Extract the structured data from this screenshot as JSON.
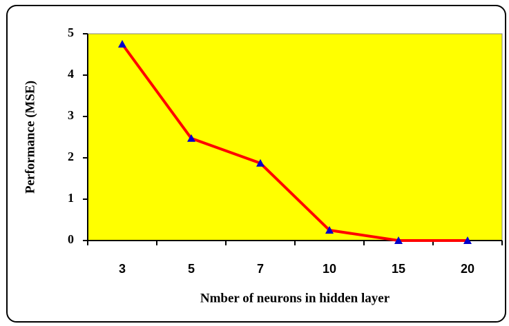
{
  "chart_data": {
    "type": "line",
    "xlabel": "Nmber of neurons in hidden layer",
    "ylabel": "Performance (MSE)",
    "categories": [
      "3",
      "5",
      "7",
      "10",
      "15",
      "20"
    ],
    "series": [
      {
        "name": "MSE",
        "color": "#ff0000",
        "marker_color": "#0000cc",
        "values": [
          4.75,
          2.47,
          1.87,
          0.25,
          0,
          0
        ]
      }
    ],
    "ylim": [
      0,
      5
    ],
    "yticks": [
      0,
      1,
      2,
      3,
      4,
      5
    ],
    "plot_background": "#ffff00",
    "grid": false
  }
}
